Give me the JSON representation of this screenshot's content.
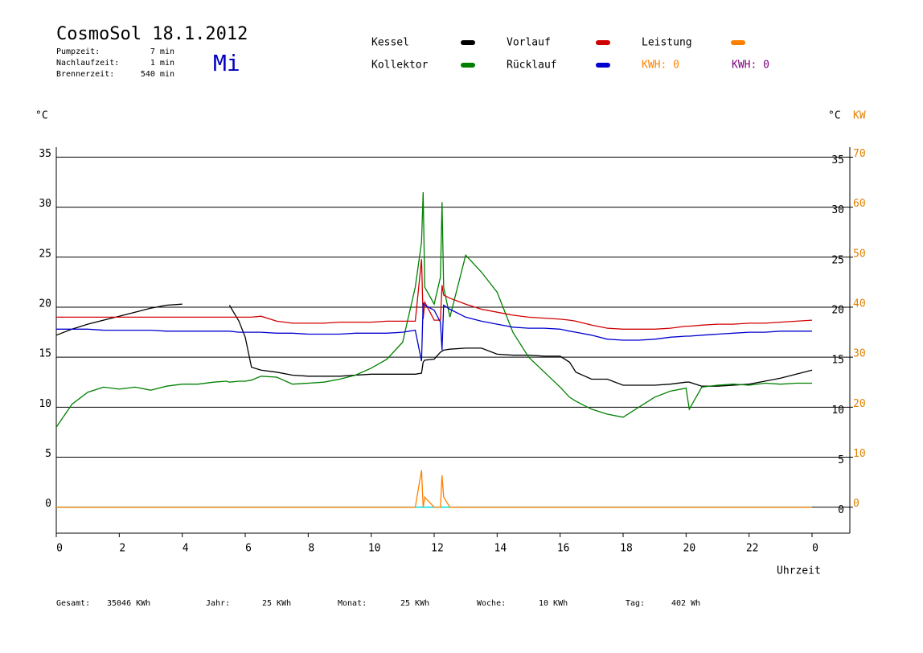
{
  "header": {
    "title": "CosmoSol 18.1.2012",
    "weekday": "Mi",
    "stats": [
      [
        "Pumpzeit:",
        "7 min"
      ],
      [
        "Nachlaufzeit:",
        "1 min"
      ],
      [
        "Brennerzeit:",
        "540 min"
      ]
    ]
  },
  "footer": [
    [
      "Gesamt:",
      "35046 KWh"
    ],
    [
      "Jahr:",
      "25 KWh"
    ],
    [
      "Monat:",
      "25 KWh"
    ],
    [
      "Woche:",
      "10 KWh"
    ],
    [
      "Tag:",
      "402 Wh"
    ]
  ],
  "chart_data": {
    "type": "line",
    "y_label": "°C",
    "y2_label": "°C",
    "y2_unit": "KW",
    "x_label": "Uhrzeit",
    "kwh_labels": [
      {
        "text": "KWH: 0",
        "color": "#ff8000"
      },
      {
        "text": "KWH: 0",
        "color": "#800080"
      }
    ],
    "xlim": [
      0,
      25.2
    ],
    "xticks": [
      0,
      2,
      4,
      6,
      8,
      10,
      12,
      14,
      16,
      18,
      20,
      22,
      {
        "value": 24,
        "label": "0"
      }
    ],
    "ylim": [
      -2.6,
      36
    ],
    "yticks": [
      0,
      5,
      10,
      15,
      20,
      25,
      30,
      35
    ],
    "y2lim": [
      -5.2,
      72
    ],
    "y2ticks": [
      0,
      10,
      20,
      30,
      40,
      50,
      60,
      70
    ],
    "grid": true,
    "x": [
      0,
      0.5,
      1,
      1.5,
      2,
      2.5,
      3,
      3.5,
      4,
      4.5,
      5,
      5.4,
      5.5,
      5.8,
      6,
      6.2,
      6.5,
      7,
      7.5,
      8,
      8.5,
      9,
      9.5,
      10,
      10.5,
      11,
      11.4,
      11.6,
      11.65,
      11.7,
      12,
      12.2,
      12.25,
      12.3,
      12.5,
      13,
      13.5,
      14,
      14.5,
      15,
      15.5,
      16,
      16.3,
      16.5,
      17,
      17.5,
      18,
      18.5,
      19,
      19.5,
      20,
      20.1,
      20.5,
      21,
      21.5,
      22,
      22.5,
      23,
      23.5,
      24
    ],
    "series": [
      {
        "name": "Kessel",
        "color": "#000000",
        "values": [
          17.2,
          17.8,
          18.3,
          18.7,
          19.1,
          19.5,
          19.9,
          20.2,
          20.3,
          null,
          null,
          null,
          20.2,
          18.6,
          17,
          14,
          13.7,
          13.5,
          13.2,
          13.1,
          13.1,
          13.1,
          13.2,
          13.3,
          13.3,
          13.3,
          13.3,
          13.4,
          14.5,
          14.7,
          14.8,
          15.5,
          15.6,
          15.7,
          15.8,
          15.9,
          15.9,
          15.3,
          15.2,
          15.2,
          15.1,
          15.1,
          14.5,
          13.5,
          12.8,
          12.8,
          12.2,
          12.2,
          12.2,
          12.3,
          12.5,
          12.5,
          12.1,
          12.1,
          12.2,
          12.3,
          12.6,
          12.9,
          13.3,
          13.7
        ]
      },
      {
        "name": "Kollektor",
        "color": "#008000",
        "values": [
          8,
          10.3,
          11.5,
          12,
          11.8,
          12,
          11.7,
          12.1,
          12.3,
          12.3,
          12.5,
          12.6,
          12.5,
          12.6,
          12.6,
          12.7,
          13.1,
          13.0,
          12.3,
          12.4,
          12.5,
          12.8,
          13.2,
          13.9,
          14.8,
          16.5,
          22,
          26.5,
          31.5,
          22,
          20.3,
          23,
          30.5,
          22,
          19,
          25.2,
          23.5,
          21.5,
          17.5,
          15,
          13.5,
          12,
          11,
          10.6,
          9.8,
          9.3,
          9,
          10,
          11,
          11.6,
          11.9,
          9.8,
          12,
          12.2,
          12.3,
          12.2,
          12.4,
          12.3,
          12.4,
          12.4
        ]
      },
      {
        "name": "Vorlauf",
        "color": "#d00000",
        "values": [
          19,
          19,
          19,
          19,
          19,
          19,
          19,
          19,
          19,
          19,
          19,
          19,
          19,
          19,
          19,
          19,
          19.1,
          18.6,
          18.4,
          18.4,
          18.4,
          18.5,
          18.5,
          18.5,
          18.6,
          18.6,
          18.6,
          24.8,
          18.8,
          20.5,
          18.7,
          18.7,
          22.2,
          21.2,
          20.9,
          20.3,
          19.8,
          19.5,
          19.2,
          19.0,
          18.9,
          18.8,
          18.7,
          18.6,
          18.2,
          17.9,
          17.8,
          17.8,
          17.8,
          17.9,
          18.1,
          18.1,
          18.2,
          18.3,
          18.3,
          18.4,
          18.4,
          18.5,
          18.6,
          18.7
        ]
      },
      {
        "name": "Rücklauf",
        "color": "#0000d0",
        "values": [
          17.8,
          17.8,
          17.8,
          17.7,
          17.7,
          17.7,
          17.7,
          17.6,
          17.6,
          17.6,
          17.6,
          17.6,
          17.6,
          17.5,
          17.5,
          17.5,
          17.5,
          17.4,
          17.4,
          17.3,
          17.3,
          17.3,
          17.4,
          17.4,
          17.4,
          17.5,
          17.7,
          14.6,
          20.4,
          20.2,
          19.7,
          18.5,
          15.7,
          20.2,
          19.8,
          19.0,
          18.6,
          18.3,
          18.0,
          17.9,
          17.9,
          17.8,
          17.6,
          17.5,
          17.2,
          16.8,
          16.7,
          16.7,
          16.8,
          17.0,
          17.1,
          17.1,
          17.2,
          17.3,
          17.4,
          17.5,
          17.5,
          17.6,
          17.6,
          17.6
        ]
      },
      {
        "name": "Leistung",
        "color": "#ff8000",
        "axis": "y2",
        "values": [
          0,
          0,
          0,
          0,
          0,
          0,
          0,
          0,
          0,
          0,
          0,
          0,
          0,
          0,
          0,
          0,
          0,
          0,
          0,
          0,
          0,
          0,
          0,
          0,
          0,
          0,
          0,
          7.4,
          0,
          2,
          0,
          0,
          6.4,
          2,
          0,
          0,
          0,
          0,
          0,
          0,
          0,
          0,
          0,
          0,
          0,
          0,
          0,
          0,
          0,
          0,
          0,
          0,
          0,
          0,
          0,
          0,
          0,
          0,
          0,
          0
        ]
      }
    ]
  }
}
